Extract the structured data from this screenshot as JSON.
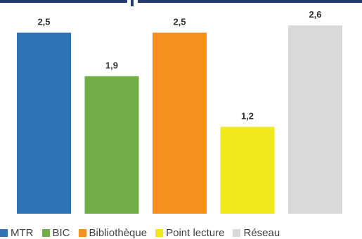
{
  "colors": {
    "accent_band": "#1f3c6e"
  },
  "chart_data": {
    "type": "bar",
    "title": "",
    "xlabel": "",
    "ylabel": "",
    "ylim": [
      0,
      2.7
    ],
    "grid": false,
    "legend_position": "bottom",
    "categories": [
      "MTR",
      "BIC",
      "Bibliothèque",
      "Point lecture",
      "Réseau"
    ],
    "values": [
      2.5,
      1.9,
      2.5,
      1.2,
      2.6
    ],
    "value_labels": [
      "2,5",
      "1,9",
      "2,5",
      "1,2",
      "2,6"
    ],
    "colors": [
      "#2e75b6",
      "#70ad47",
      "#f5901e",
      "#f2e81c",
      "#d9d9d9"
    ],
    "legend": [
      "MTR",
      "BIC",
      "Bibliothèque",
      "Point lecture",
      "Réseau"
    ]
  }
}
